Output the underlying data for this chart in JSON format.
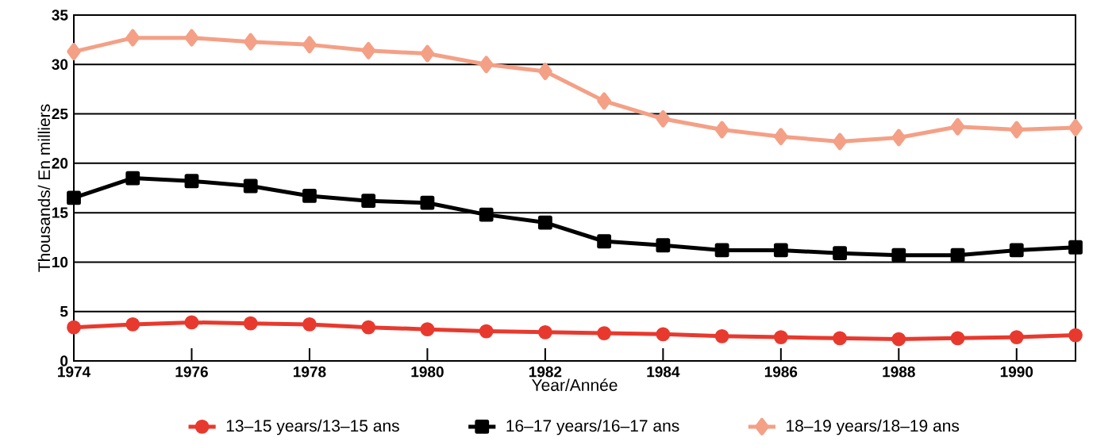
{
  "chart_data": {
    "type": "line",
    "xlabel": "Year/Année",
    "ylabel": "Thousands/ En milliers",
    "x": [
      1974,
      1975,
      1976,
      1977,
      1978,
      1979,
      1980,
      1981,
      1982,
      1983,
      1984,
      1985,
      1986,
      1987,
      1988,
      1989,
      1990,
      1991
    ],
    "series": [
      {
        "name": "13–15 years/13–15 ans",
        "color": "#e8392e",
        "marker": "circle",
        "values": [
          3.4,
          3.7,
          3.9,
          3.8,
          3.7,
          3.4,
          3.2,
          3.0,
          2.9,
          2.8,
          2.7,
          2.5,
          2.4,
          2.3,
          2.2,
          2.3,
          2.4,
          2.6
        ]
      },
      {
        "name": "16–17 years/16–17 ans",
        "color": "#000000",
        "marker": "square",
        "values": [
          16.5,
          18.5,
          18.2,
          17.7,
          16.7,
          16.2,
          16.0,
          14.8,
          14.0,
          12.1,
          11.7,
          11.2,
          11.2,
          10.9,
          10.7,
          10.7,
          11.2,
          11.5
        ]
      },
      {
        "name": "18–19 years/18–19 ans",
        "color": "#f4a086",
        "marker": "diamond",
        "values": [
          31.3,
          32.7,
          32.7,
          32.3,
          32.0,
          31.4,
          31.1,
          30.0,
          29.3,
          26.3,
          24.5,
          23.4,
          22.7,
          22.2,
          22.6,
          23.7,
          23.4,
          23.6
        ]
      }
    ],
    "xlim": [
      1974,
      1991
    ],
    "ylim": [
      0,
      35
    ],
    "xticks": [
      1974,
      1976,
      1978,
      1980,
      1982,
      1984,
      1986,
      1988,
      1990
    ],
    "yticks": [
      0,
      5,
      10,
      15,
      20,
      25,
      30,
      35
    ],
    "grid": "y",
    "legend": "bottom"
  }
}
